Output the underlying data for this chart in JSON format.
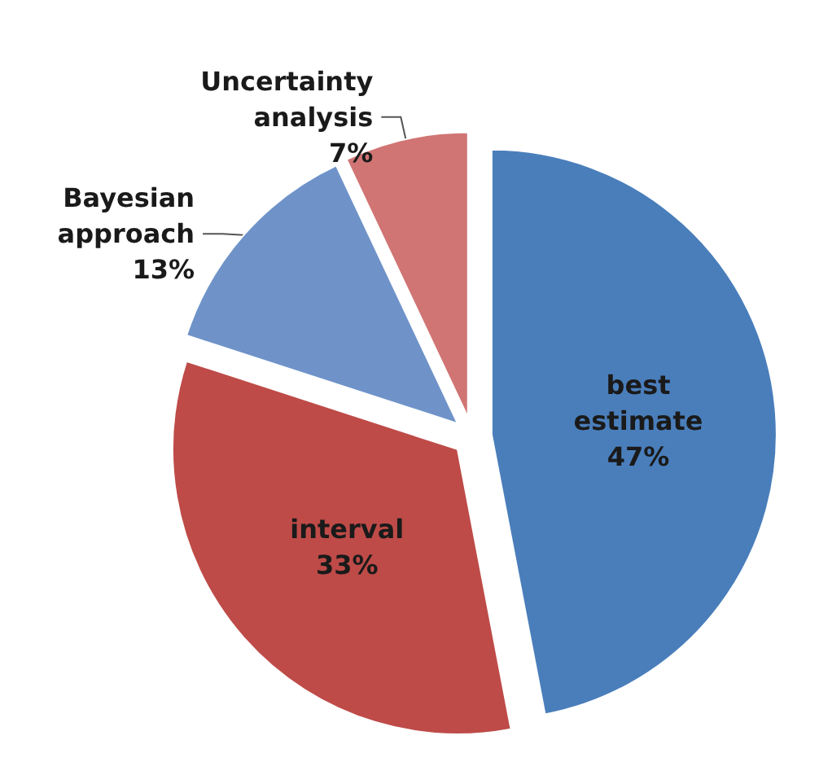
{
  "chart_data": {
    "type": "pie",
    "categories": [
      "best estimate",
      "interval",
      "Bayesian approach",
      "Uncertainty analysis"
    ],
    "values": [
      47,
      33,
      13,
      7
    ],
    "colors": [
      "#4a7ebb",
      "#be4b48",
      "#6f93c9",
      "#d07574"
    ],
    "value_labels": [
      "47%",
      "33%",
      "13%",
      "7%"
    ],
    "legend": false
  }
}
